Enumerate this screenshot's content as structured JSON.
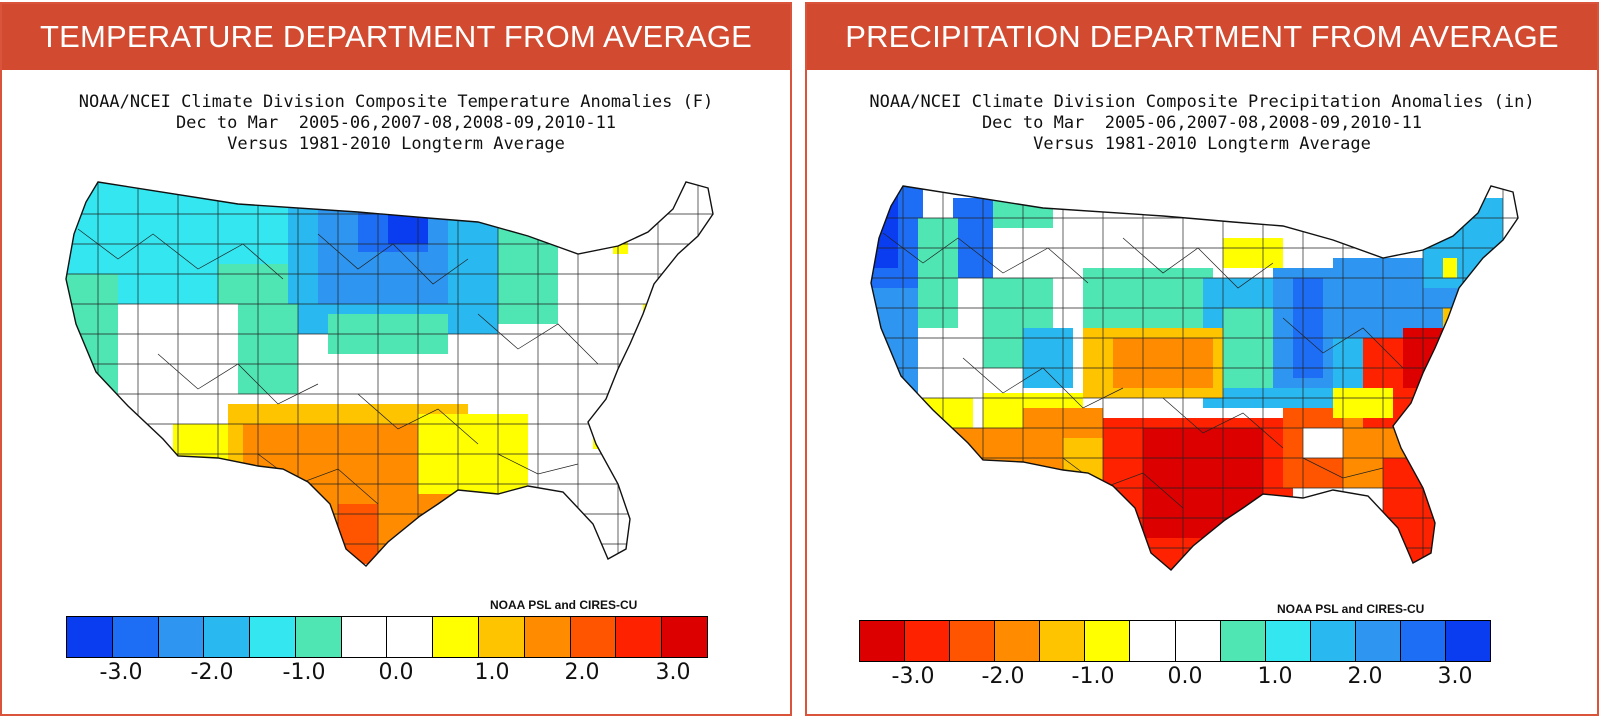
{
  "panels": [
    {
      "banner": "TEMPERATURE DEPARTMENT FROM AVERAGE",
      "title_lines": [
        "NOAA/NCEI Climate Division Composite Temperature Anomalies (F)",
        "Dec to Mar  2005-06,2007-08,2008-09,2010-11",
        "Versus 1981-2010 Longterm Average"
      ],
      "credit": "NOAA PSL and CIRES-CU",
      "legend_colors": [
        "#0a3cf0",
        "#1e6ef5",
        "#2e96f0",
        "#2ab8f0",
        "#33e6f0",
        "#4fe6b4",
        "#ffffff",
        "#ffffff",
        "#ffff00",
        "#ffc400",
        "#ff8c00",
        "#ff5500",
        "#ff2200",
        "#dd0000"
      ],
      "ticks": [
        "-3.0",
        "-2.0",
        "-1.0",
        "0.0",
        "1.0",
        "2.0",
        "3.0"
      ]
    },
    {
      "banner": "PRECIPITATION DEPARTMENT FROM AVERAGE",
      "title_lines": [
        "NOAA/NCEI Climate Division Composite Precipitation Anomalies (in)",
        "Dec to Mar  2005-06,2007-08,2008-09,2010-11",
        "Versus 1981-2010 Longterm Average"
      ],
      "credit": "NOAA PSL and CIRES-CU",
      "legend_colors": [
        "#dd0000",
        "#ff2200",
        "#ff5500",
        "#ff8c00",
        "#ffc400",
        "#ffff00",
        "#ffffff",
        "#ffffff",
        "#4fe6b4",
        "#33e6f0",
        "#2ab8f0",
        "#2e96f0",
        "#1e6ef5",
        "#0a3cf0"
      ],
      "ticks": [
        "-3.0",
        "-2.0",
        "-1.0",
        "0.0",
        "1.0",
        "2.0",
        "3.0"
      ]
    }
  ]
}
